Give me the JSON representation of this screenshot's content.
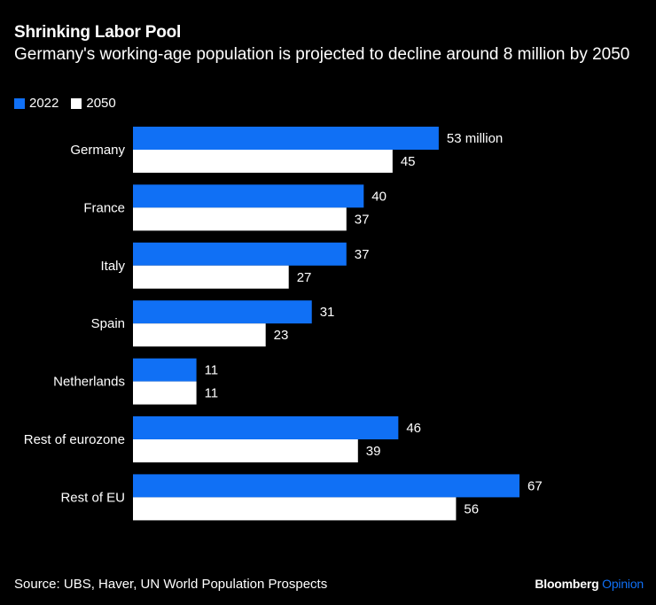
{
  "colors": {
    "series_2022": "#1070f5",
    "series_2050": "#ffffff",
    "background": "#000000",
    "logo_accent": "#1070f5"
  },
  "chart_data": {
    "type": "bar",
    "orientation": "horizontal",
    "title": "Shrinking Labor Pool",
    "subtitle": "Germany's working-age population is projected to decline around 8 million by 2050",
    "categories": [
      "Germany",
      "France",
      "Italy",
      "Spain",
      "Netherlands",
      "Rest of eurozone",
      "Rest of EU"
    ],
    "series": [
      {
        "name": "2022",
        "values": [
          53,
          40,
          37,
          31,
          11,
          46,
          67
        ]
      },
      {
        "name": "2050",
        "values": [
          45,
          37,
          27,
          23,
          11,
          39,
          56
        ]
      }
    ],
    "data_labels": {
      "2022": [
        "53 million",
        "40",
        "37",
        "31",
        "11",
        "46",
        "67"
      ],
      "2050": [
        "45",
        "37",
        "27",
        "23",
        "11",
        "39",
        "56"
      ]
    },
    "unit": "million",
    "xlim": [
      0,
      67
    ],
    "grid": false,
    "legend_placement": "top-left"
  },
  "footer": {
    "source": "Source: UBS, Haver, UN World Population Prospects",
    "logo_brand": "Bloomberg",
    "logo_product": "Opinion"
  }
}
